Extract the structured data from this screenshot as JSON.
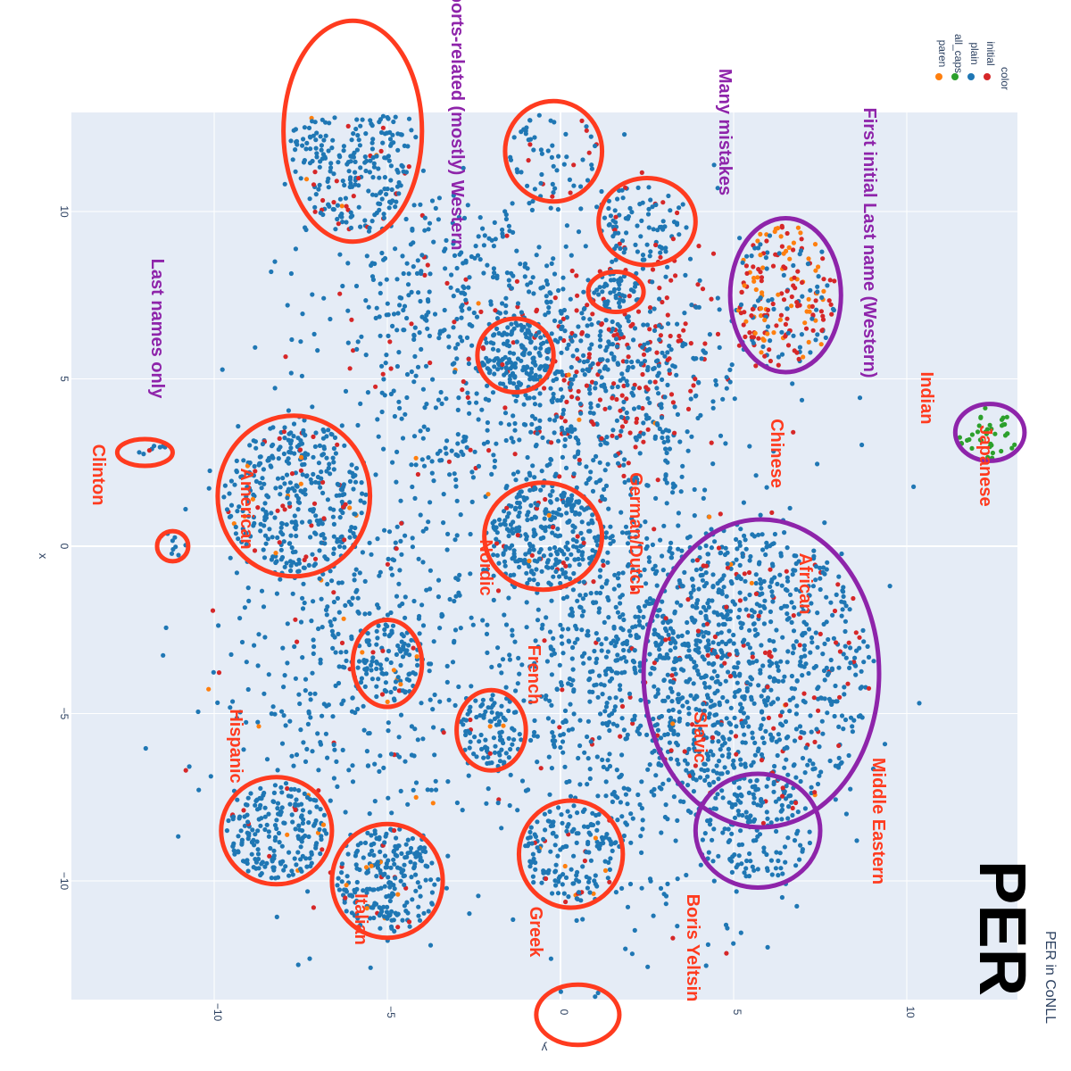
{
  "chart_data": {
    "type": "scatter",
    "orientation_note": "Rendered mirrored/rotated",
    "subtitle": "PER in CoNLL",
    "big_title": "PER",
    "xlabel": "x",
    "ylabel": "y",
    "xlim": [
      -12,
      11
    ],
    "ylim": [
      -12.5,
      14
    ],
    "x_ticks": [
      "−10",
      "−5",
      "0",
      "5",
      "10"
    ],
    "y_ticks": [
      "−10",
      "−5",
      "0",
      "5",
      "10"
    ],
    "x_tick_values": [
      -10,
      -5,
      0,
      5,
      10
    ],
    "y_tick_values": [
      -10,
      -5,
      0,
      5,
      10
    ],
    "grid": true,
    "legend": {
      "title": "color",
      "placement": "top-right",
      "entries": [
        {
          "name": "initial",
          "color": "#d62728"
        },
        {
          "name": "plain",
          "color": "#1f77b4"
        },
        {
          "name": "all_caps",
          "color": "#2ca02c"
        },
        {
          "name": "paren",
          "color": "#ff7f0e"
        }
      ]
    },
    "colors": {
      "plot_bg": "#e5ecf6",
      "grid": "#ffffff",
      "red_annotation": "#ff3b1f",
      "purple_annotation": "#8e24aa"
    },
    "clusters": [
      {
        "label": "Clinton",
        "kind": "red",
        "x": 0.5,
        "y": -14.0,
        "rx": 1.2,
        "ry": 0.9,
        "n": 30,
        "mix": {
          "plain": 0.9,
          "initial": 0.1
        }
      },
      {
        "label": "American",
        "kind": "red",
        "x": 0.3,
        "y": -9.2,
        "rx": 1.5,
        "ry": 1.6,
        "n": 140,
        "mix": {
          "plain": 0.93,
          "initial": 0.05,
          "paren": 0.02
        }
      },
      {
        "label": "Nordic",
        "kind": "red",
        "x": -2.0,
        "y": -5.5,
        "rx": 1.0,
        "ry": 1.2,
        "n": 70,
        "mix": {
          "plain": 0.92,
          "paren": 0.05,
          "initial": 0.03
        }
      },
      {
        "label": "German/Dutch",
        "kind": "red",
        "x": -0.5,
        "y": 0.3,
        "rx": 1.7,
        "ry": 1.6,
        "n": 200,
        "mix": {
          "plain": 0.85,
          "initial": 0.1,
          "paren": 0.05
        }
      },
      {
        "label": "French",
        "kind": "red",
        "x": -5.0,
        "y": -3.5,
        "rx": 1.0,
        "ry": 1.3,
        "n": 80,
        "mix": {
          "plain": 0.9,
          "paren": 0.06,
          "initial": 0.04
        }
      },
      {
        "label": "Hispanic",
        "kind": "red",
        "x": -5.0,
        "y": -10.0,
        "rx": 1.6,
        "ry": 1.7,
        "n": 220,
        "mix": {
          "plain": 0.94,
          "initial": 0.03,
          "paren": 0.03
        }
      },
      {
        "label": "Italian",
        "kind": "red",
        "x": -8.2,
        "y": -8.5,
        "rx": 1.6,
        "ry": 1.6,
        "n": 200,
        "mix": {
          "plain": 0.94,
          "initial": 0.03,
          "paren": 0.03
        }
      },
      {
        "label": "Greek",
        "kind": "red",
        "x": -11.2,
        "y": 0.0,
        "rx": 0.45,
        "ry": 0.45,
        "n": 8,
        "mix": {
          "plain": 0.8,
          "paren": 0.2
        }
      },
      {
        "label": "Slavic",
        "kind": "red",
        "x": -7.7,
        "y": 1.5,
        "rx": 2.2,
        "ry": 2.4,
        "n": 320,
        "mix": {
          "plain": 0.88,
          "initial": 0.1,
          "paren": 0.02
        }
      },
      {
        "label": "Boris Yeltsin",
        "kind": "red",
        "x": -12.0,
        "y": 2.8,
        "rx": 0.8,
        "ry": 0.4,
        "n": 8,
        "mix": {
          "plain": 0.7,
          "initial": 0.3
        }
      },
      {
        "label": "African",
        "kind": "red",
        "x": -1.3,
        "y": 5.7,
        "rx": 1.1,
        "ry": 1.1,
        "n": 100,
        "mix": {
          "plain": 0.95,
          "initial": 0.05
        }
      },
      {
        "label": "Middle Eastern",
        "kind": "red",
        "x": -6.0,
        "y": 12.4,
        "rx": 2.0,
        "ry": 3.3,
        "n": 400,
        "mix": {
          "plain": 0.88,
          "initial": 0.1,
          "paren": 0.02
        }
      },
      {
        "label": "Chinese",
        "kind": "red",
        "x": 1.6,
        "y": 7.6,
        "rx": 0.8,
        "ry": 0.6,
        "n": 40,
        "mix": {
          "plain": 1.0
        }
      },
      {
        "label": "Indian",
        "kind": "red",
        "x": 2.5,
        "y": 9.7,
        "rx": 1.4,
        "ry": 1.3,
        "n": 80,
        "mix": {
          "plain": 0.9,
          "initial": 0.1
        }
      },
      {
        "label": "Japanese",
        "kind": "red",
        "x": -0.2,
        "y": 11.8,
        "rx": 1.4,
        "ry": 1.5,
        "n": 60,
        "mix": {
          "plain": 0.85,
          "initial": 0.15
        }
      },
      {
        "label": "Last names only",
        "kind": "purple",
        "x": 5.7,
        "y": -8.5,
        "rx": 1.8,
        "ry": 1.7,
        "n": 100,
        "mix": {
          "plain": 1.0
        }
      },
      {
        "label": "Broadly sports-related (mostly) Western",
        "kind": "purple",
        "x": 5.8,
        "y": -3.8,
        "rx": 3.4,
        "ry": 4.6,
        "n": 600,
        "mix": {
          "plain": 0.87,
          "initial": 0.12,
          "paren": 0.01
        }
      },
      {
        "label": "Many mistakes",
        "kind": "purple",
        "x": 12.4,
        "y": 3.4,
        "rx": 1.0,
        "ry": 0.85,
        "n": 40,
        "mix": {
          "all_caps": 1.0
        }
      },
      {
        "label": "First initial Last name (Western)",
        "kind": "purple",
        "x": 6.5,
        "y": 7.5,
        "rx": 1.6,
        "ry": 2.3,
        "n": 220,
        "mix": {
          "initial": 0.42,
          "paren": 0.33,
          "plain": 0.25
        }
      }
    ],
    "diffuse": [
      {
        "x": 2.5,
        "y": -3.5,
        "sx": 4.5,
        "sy": 6.0,
        "n": 1150,
        "mix": {
          "plain": 0.95,
          "initial": 0.05
        }
      },
      {
        "x": 2.0,
        "y": 5.5,
        "sx": 2.5,
        "sy": 2.6,
        "n": 220,
        "mix": {
          "initial": 0.55,
          "plain": 0.45
        }
      },
      {
        "x": 0.0,
        "y": 4.5,
        "sx": 4.5,
        "sy": 4.5,
        "n": 650,
        "mix": {
          "plain": 0.88,
          "initial": 0.1,
          "paren": 0.02
        }
      },
      {
        "x": -6.0,
        "y": -3.0,
        "sx": 3.5,
        "sy": 6.5,
        "n": 500,
        "mix": {
          "plain": 0.94,
          "initial": 0.04,
          "paren": 0.02
        }
      },
      {
        "x": -3.5,
        "y": 7.5,
        "sx": 3.5,
        "sy": 3.5,
        "n": 300,
        "mix": {
          "plain": 0.9,
          "initial": 0.1
        }
      }
    ]
  }
}
